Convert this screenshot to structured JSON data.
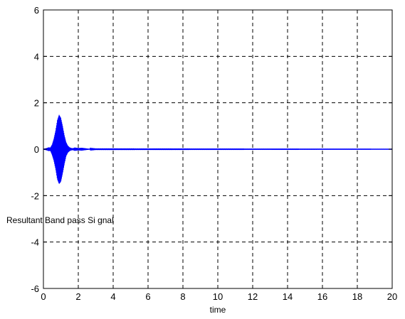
{
  "chart_data": {
    "type": "line",
    "title": "",
    "xlabel": "time",
    "ylabel": "Resultant Band pass Si gnal",
    "xlim": [
      0,
      20
    ],
    "ylim": [
      -6,
      6
    ],
    "x_ticks": [
      0,
      2,
      4,
      6,
      8,
      10,
      12,
      14,
      16,
      18,
      20
    ],
    "y_ticks": [
      -6,
      -4,
      -2,
      0,
      2,
      4,
      6
    ],
    "x_tick_labels": [
      "0",
      "2",
      "4",
      "6",
      "8",
      "10",
      "12",
      "14",
      "16",
      "18",
      "20"
    ],
    "y_tick_labels": [
      "-6",
      "-4",
      "-2",
      "0",
      "2",
      "4",
      "6"
    ],
    "grid": true,
    "grid_style": "dashed",
    "legend": "none",
    "series": [
      {
        "color": "#0000ff",
        "envelope": {
          "x": [
            0,
            0.1,
            0.2,
            0.3,
            0.4,
            0.5,
            0.6,
            0.7,
            0.8,
            0.9,
            1.0,
            1.1,
            1.2,
            1.3,
            1.4,
            1.5,
            1.6,
            1.7,
            1.8,
            1.9,
            2.0,
            2.2,
            2.4,
            2.6,
            3.0,
            20
          ],
          "upper": [
            0.02,
            0.03,
            0.05,
            0.08,
            0.07,
            0.2,
            0.45,
            0.8,
            1.25,
            1.48,
            1.35,
            1.0,
            0.6,
            0.3,
            0.15,
            0.08,
            0.05,
            0.04,
            0.07,
            0.06,
            0.05,
            0.06,
            0.04,
            0.02,
            0.01,
            0.005
          ],
          "lower": [
            -0.02,
            -0.03,
            -0.05,
            -0.08,
            -0.07,
            -0.25,
            -0.5,
            -0.85,
            -1.3,
            -1.5,
            -1.4,
            -1.05,
            -0.65,
            -0.3,
            -0.15,
            -0.08,
            -0.05,
            -0.04,
            -0.07,
            -0.06,
            -0.05,
            -0.06,
            -0.04,
            -0.02,
            -0.01,
            -0.005
          ]
        }
      }
    ]
  }
}
